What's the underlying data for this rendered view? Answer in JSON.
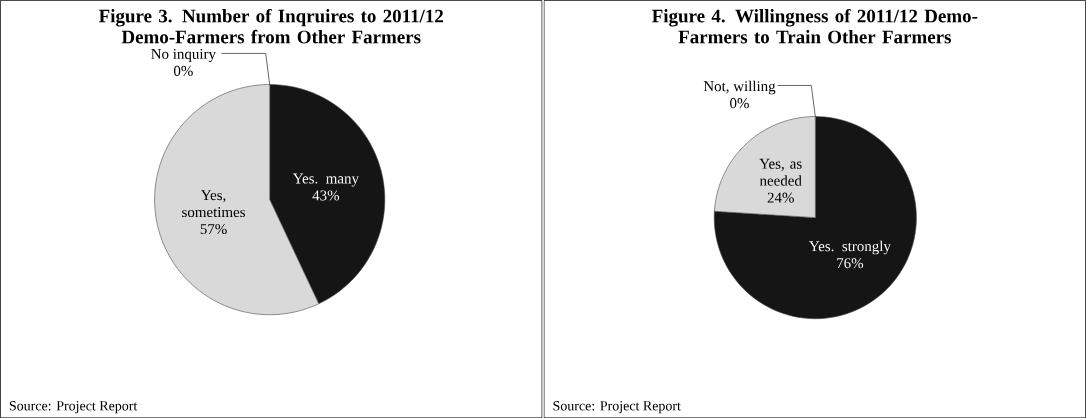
{
  "chart_data": [
    {
      "type": "pie",
      "title": "Figure 3. Number of Inqruires to 2011/12 Demo-Farmers from Other Farmers",
      "categories": [
        "Yes. many",
        "Yes, sometimes",
        "No inquiry"
      ],
      "values": [
        43,
        57,
        0
      ],
      "value_labels": [
        "43%",
        "57%",
        "0%"
      ],
      "colors": [
        "#151515",
        "#d9d9d9",
        "#ffffff"
      ],
      "annotations": [
        "Source: Project Report"
      ]
    },
    {
      "type": "pie",
      "title": "Figure 4. Willingness of 2011/12 Demo-Farmers to Train Other Farmers",
      "categories": [
        "Yes. strongly",
        "Yes, as needed",
        "Not, willing"
      ],
      "values": [
        76,
        24,
        0
      ],
      "value_labels": [
        "76%",
        "24%",
        "0%"
      ],
      "colors": [
        "#151515",
        "#d9d9d9",
        "#ffffff"
      ],
      "annotations": [
        "Source: Project Report"
      ]
    }
  ]
}
